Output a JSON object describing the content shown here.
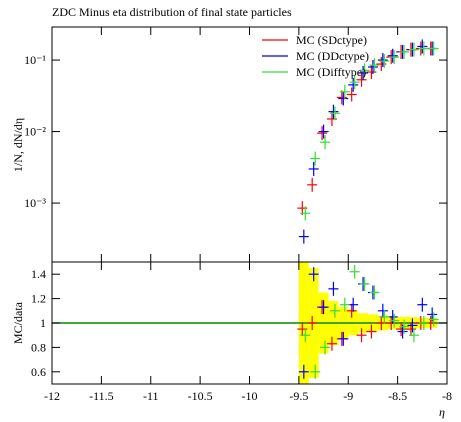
{
  "chart_data": [
    {
      "type": "scatter",
      "title": "ZDC Minus eta distribution of final state particles",
      "y_label": "1/N, dN/dη",
      "log_y": true,
      "legend": "upper right",
      "x": [
        -9.45,
        -9.35,
        -9.25,
        -9.15,
        -9.05,
        -8.95,
        -8.85,
        -8.75,
        -8.65,
        -8.55,
        -8.45,
        -8.35,
        -8.25,
        -8.15
      ],
      "xlim": [
        -12,
        -8
      ],
      "ylim": [
        0.00015,
        0.29
      ],
      "yticks": [
        {
          "value": 0.001,
          "label": "10⁻³"
        },
        {
          "value": 0.01,
          "label": "10⁻²"
        },
        {
          "value": 0.1,
          "label": "10⁻¹"
        }
      ],
      "series": [
        {
          "name": "MC (SDctype)",
          "color": "#ff0000",
          "values": [
            0.00085,
            0.0018,
            0.0095,
            0.015,
            0.03,
            0.033,
            0.053,
            0.068,
            0.088,
            0.11,
            0.13,
            0.14,
            0.145,
            0.145
          ]
        },
        {
          "name": "MC (DDctype)",
          "color": "#0000ff",
          "values": [
            0.00034,
            0.003,
            0.01,
            0.019,
            0.029,
            0.045,
            0.066,
            0.08,
            0.1,
            0.115,
            0.13,
            0.14,
            0.155,
            0.145
          ]
        },
        {
          "name": "MC (Difftype)",
          "color": "#33dd33",
          "values": [
            0.00072,
            0.0042,
            0.0071,
            0.018,
            0.036,
            0.049,
            0.072,
            0.085,
            0.097,
            0.11,
            0.13,
            0.14,
            0.145,
            0.145
          ]
        }
      ]
    },
    {
      "type": "scatter",
      "y_label": "MC/data",
      "x_label": "η",
      "x": [
        -9.45,
        -9.35,
        -9.25,
        -9.15,
        -9.05,
        -8.95,
        -8.85,
        -8.75,
        -8.65,
        -8.55,
        -8.45,
        -8.35,
        -8.25,
        -8.15
      ],
      "xlim": [
        -12,
        -8
      ],
      "xticks": [
        -12,
        -11.5,
        -11,
        -10.5,
        -10,
        -9.5,
        -9,
        -8.5,
        -8
      ],
      "ylim": [
        0.5,
        1.5
      ],
      "yticks": [
        0.6,
        0.8,
        1,
        1.2,
        1.4
      ],
      "band_color": "#ffff00",
      "reference_color": "#008800",
      "band": [
        0.6,
        0.45,
        0.25,
        0.18,
        0.13,
        0.1,
        0.08,
        0.07,
        0.06,
        0.05,
        0.05,
        0.05,
        0.04,
        0.04
      ],
      "series": [
        {
          "color": "#ff0000",
          "values": [
            0.95,
            1.0,
            1.13,
            0.83,
            0.87,
            1.1,
            0.9,
            0.93,
            1.0,
            1.0,
            0.95,
            0.95,
            1.0,
            1.0
          ]
        },
        {
          "color": "#0000ff",
          "values": [
            0.6,
            1.4,
            1.13,
            1.28,
            0.87,
            1.15,
            1.32,
            1.25,
            1.1,
            1.05,
            0.93,
            0.98,
            1.15,
            1.07
          ]
        },
        {
          "color": "#33dd33",
          "values": [
            0.9,
            0.6,
            0.8,
            1.1,
            1.15,
            1.42,
            1.32,
            1.25,
            1.05,
            1.02,
            0.97,
            0.9,
            1.0,
            1.03
          ]
        }
      ]
    }
  ]
}
